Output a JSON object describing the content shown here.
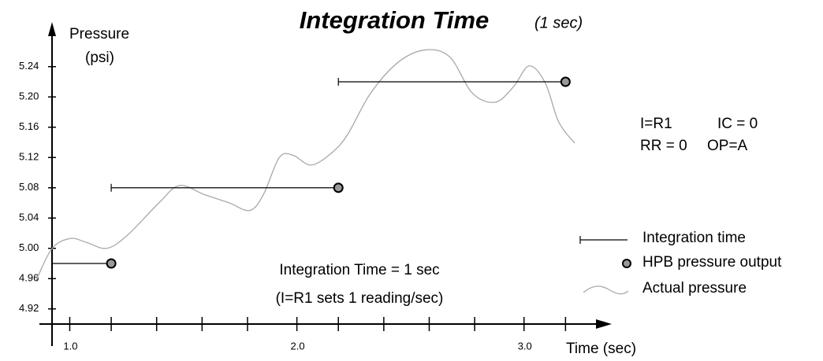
{
  "chart_data": {
    "type": "line",
    "title": "Integration Time",
    "subtitle": "(1 sec)",
    "y_label": [
      "Pressure",
      "(psi)"
    ],
    "x_label": "Time (sec)",
    "xlim": [
      0.87,
      3.4
    ],
    "ylim": [
      4.9,
      5.3
    ],
    "xticks": [
      {
        "value": 1,
        "label": "1.0"
      },
      {
        "value": 2,
        "label": "2.0"
      },
      {
        "value": 3,
        "label": "3.0"
      }
    ],
    "xminorticks": [
      1.2,
      1.4,
      1.6,
      1.8,
      2.2,
      2.4,
      2.6,
      2.8,
      3.2
    ],
    "yticks": [
      4.92,
      4.96,
      {
        "value": 5,
        "label": "5.00"
      },
      5.04,
      5.08,
      5.12,
      5.16,
      {
        "value": 5.2,
        "label": "5.20"
      },
      5.24
    ],
    "series": [
      {
        "name": "Integration time",
        "color": "#000000",
        "x_start": [
          0.94,
          1.2,
          2.2
        ]
      },
      {
        "name": "HPB pressure output",
        "color": "#999999",
        "x": [
          1.2,
          2.2,
          3.2
        ],
        "values": [
          4.98,
          5.08,
          5.22
        ]
      },
      {
        "name": "Actual pressure",
        "color": "#a8a8a8",
        "x": [
          0.87,
          0.94,
          1.02,
          1.09,
          1.18,
          1.27,
          1.41,
          1.5,
          1.61,
          1.72,
          1.81,
          1.87,
          1.94,
          2.0,
          2.08,
          2.17,
          2.24,
          2.34,
          2.46,
          2.58,
          2.69,
          2.79,
          2.89,
          2.97,
          3.04,
          3.11,
          3.17,
          3.24
        ],
        "values": [
          4.958,
          5.0,
          5.013,
          5.008,
          5.0,
          5.017,
          5.06,
          5.083,
          5.071,
          5.06,
          5.05,
          5.071,
          5.12,
          5.123,
          5.11,
          5.126,
          5.15,
          5.204,
          5.245,
          5.262,
          5.253,
          5.205,
          5.193,
          5.213,
          5.241,
          5.219,
          5.167,
          5.139
        ]
      }
    ],
    "annotations": [
      "Integration Time = 1 sec",
      "(I=R1 sets 1 reading/sec)"
    ],
    "settings": [
      [
        "I=R1",
        "IC = 0"
      ],
      [
        "RR = 0",
        "OP=A"
      ]
    ]
  }
}
